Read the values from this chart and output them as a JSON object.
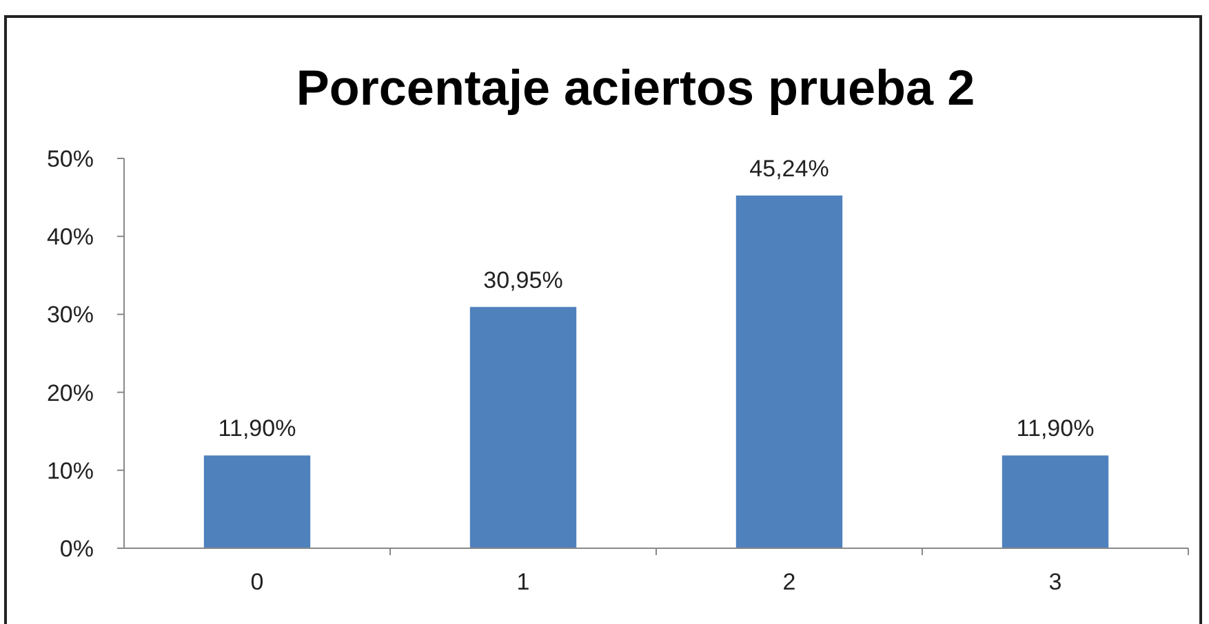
{
  "chart_data": {
    "type": "bar",
    "title": "Porcentaje aciertos prueba 2",
    "categories": [
      "0",
      "1",
      "2",
      "3"
    ],
    "values": [
      11.9,
      30.95,
      45.24,
      11.9
    ],
    "value_labels": [
      "11,90%",
      "30,95%",
      "45,24%",
      "11,90%"
    ],
    "color": "#4f81bd",
    "ylim": [
      0,
      50
    ],
    "yticks": [
      {
        "value": 0,
        "label": "0%"
      },
      {
        "value": 10,
        "label": "10%"
      },
      {
        "value": 20,
        "label": "20%"
      },
      {
        "value": 30,
        "label": "30%"
      },
      {
        "value": 40,
        "label": "40%"
      },
      {
        "value": 50,
        "label": "50%"
      }
    ],
    "grid": false
  }
}
